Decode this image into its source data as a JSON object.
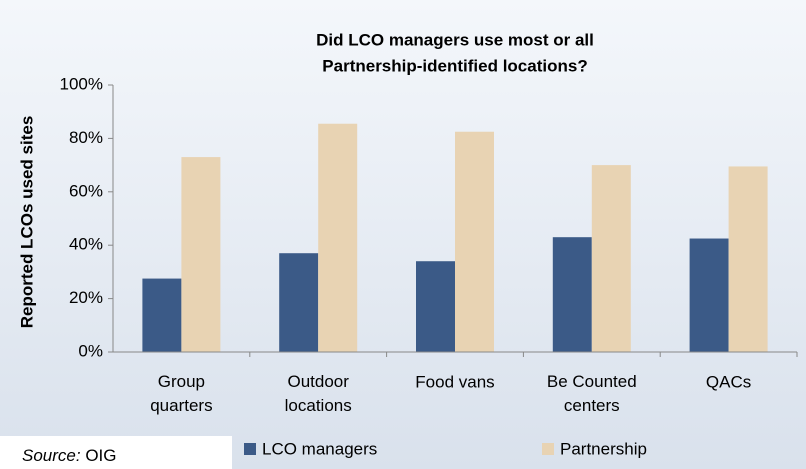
{
  "chart_data": {
    "type": "bar",
    "title": [
      "Did LCO managers use most or all",
      "Partnership-identified locations?"
    ],
    "ylabel": "Reported LCOs used sites",
    "categories": [
      "Group quarters",
      "Outdoor locations",
      "Food vans",
      "Be Counted centers",
      "QACs"
    ],
    "series": [
      {
        "name": "LCO managers",
        "color": "#3b5a87",
        "values": [
          27.5,
          37,
          34,
          43,
          42.5
        ]
      },
      {
        "name": "Partnership",
        "color": "#e8d3b3",
        "values": [
          73,
          85.5,
          82.5,
          70,
          69.5
        ]
      }
    ],
    "ylim": [
      0,
      100
    ],
    "yticks": [
      {
        "value": 0,
        "label": "0%"
      },
      {
        "value": 20,
        "label": "20%"
      },
      {
        "value": 40,
        "label": "40%"
      },
      {
        "value": 60,
        "label": "60%"
      },
      {
        "value": 80,
        "label": "80%"
      },
      {
        "value": 100,
        "label": "100%"
      }
    ],
    "grid": false,
    "legend": "bottom",
    "source_label": "Source:",
    "source": "OIG"
  }
}
